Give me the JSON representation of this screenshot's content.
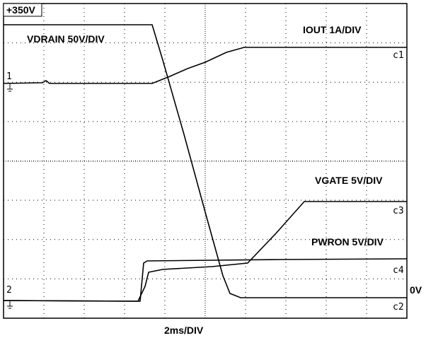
{
  "screen": {
    "top_left_label": "+350V",
    "traces": [
      {
        "label": "VDRAIN 50V/DIV",
        "marker": "c2"
      },
      {
        "label": "IOUT 1A/DIV",
        "marker": "c1"
      },
      {
        "label": "VGATE 5V/DIV",
        "marker": "c3"
      },
      {
        "label": "PWRON 5V/DIV",
        "marker": "c4"
      }
    ],
    "ground_markers": [
      "1",
      "2"
    ],
    "right_label": "0V",
    "timebase": "2ms/DIV"
  }
}
